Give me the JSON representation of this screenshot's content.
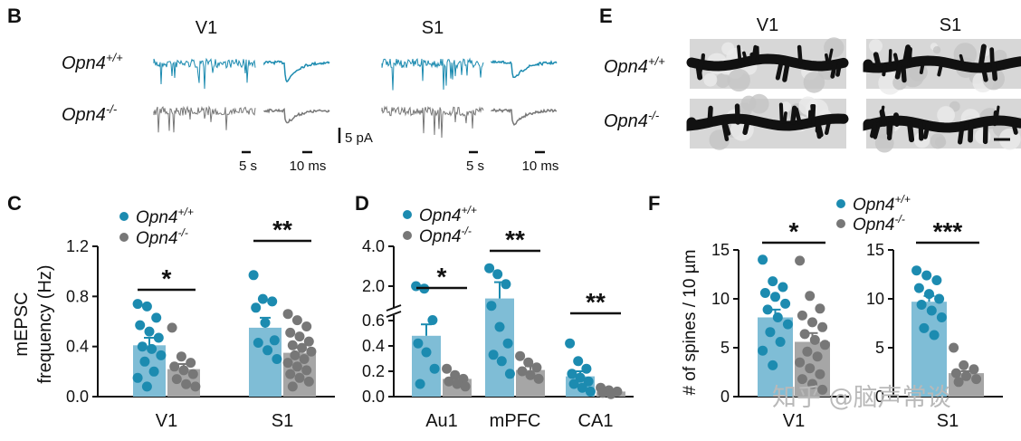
{
  "colors": {
    "wt": "#1c8bb0",
    "wt_bar": "#7fbdd6",
    "ko": "#777777",
    "ko_bar": "#a6a6a6",
    "ax": "#111111"
  },
  "genotypes": {
    "wt": "Opn4",
    "wt_sup": "+/+",
    "ko": "Opn4",
    "ko_sup": "-/-"
  },
  "panel_b": {
    "letter": "B",
    "regions": [
      "V1",
      "S1"
    ],
    "rows": [
      "Opn4+/+",
      "Opn4-/-"
    ],
    "scale_y": "5 pA",
    "scale_x_long": "5 s",
    "scale_x_short": "10 ms"
  },
  "panel_e": {
    "letter": "E",
    "regions": [
      "V1",
      "S1"
    ],
    "rows": [
      "Opn4+/+",
      "Opn4-/-"
    ]
  },
  "watermark": "知乎 @脑声常谈",
  "chart_data": [
    {
      "panel": "C",
      "type": "bar",
      "ylabel": "mEPSC frequency (Hz)",
      "ylabel_line1": "mEPSC",
      "ylabel_line2": "frequency (Hz)",
      "ylim": [
        0,
        1.2
      ],
      "yticks": [
        "0.0",
        "0.4",
        "0.8",
        "1.2"
      ],
      "categories": [
        "V1",
        "S1"
      ],
      "series": [
        {
          "name": "Opn4+/+",
          "values": [
            0.41,
            0.55
          ],
          "sem": [
            0.06,
            0.08
          ],
          "points": [
            [
              0.74,
              0.72,
              0.63,
              0.57,
              0.52,
              0.47,
              0.4,
              0.38,
              0.33,
              0.28,
              0.2,
              0.15,
              0.08
            ],
            [
              0.97,
              0.78,
              0.76,
              0.71,
              0.59,
              0.45,
              0.43,
              0.37,
              0.3
            ]
          ]
        },
        {
          "name": "Opn4-/-",
          "values": [
            0.22,
            0.35
          ],
          "sem": [
            0.04,
            0.04
          ],
          "points": [
            [
              0.55,
              0.32,
              0.27,
              0.24,
              0.21,
              0.18,
              0.14,
              0.1,
              0.08
            ],
            [
              0.66,
              0.61,
              0.56,
              0.51,
              0.48,
              0.44,
              0.41,
              0.39,
              0.36,
              0.33,
              0.3,
              0.27,
              0.24,
              0.21,
              0.18,
              0.15,
              0.12,
              0.08
            ]
          ]
        }
      ],
      "significance": [
        "*",
        "**"
      ]
    },
    {
      "panel": "D",
      "type": "bar",
      "ylim_lower": [
        0,
        0.6
      ],
      "ylim_upper": [
        2.0,
        4.0
      ],
      "yticks_lower": [
        "0.0",
        "0.2",
        "0.4",
        "0.6"
      ],
      "yticks_upper": [
        "2.0",
        "4.0"
      ],
      "categories": [
        "Au1",
        "mPFC",
        "CA1"
      ],
      "series": [
        {
          "name": "Opn4+/+",
          "values": [
            0.48,
            1.5,
            0.16
          ],
          "sem": [
            0.09,
            0.7,
            0.04
          ],
          "points": [
            [
              2.0,
              1.9,
              0.62,
              0.42,
              0.35,
              0.22,
              0.1
            ],
            [
              2.9,
              2.6,
              2.1,
              1.2,
              0.55,
              0.42,
              0.33,
              0.28,
              0.18
            ],
            [
              0.42,
              0.28,
              0.22,
              0.18,
              0.15,
              0.12,
              0.1,
              0.07,
              0.04
            ]
          ]
        },
        {
          "name": "Opn4-/-",
          "values": [
            0.14,
            0.21,
            0.04
          ],
          "sem": [
            0.02,
            0.03,
            0.01
          ],
          "points": [
            [
              0.22,
              0.17,
              0.14,
              0.12,
              0.1,
              0.08
            ],
            [
              0.32,
              0.27,
              0.23,
              0.2,
              0.17,
              0.14
            ],
            [
              0.07,
              0.05,
              0.04,
              0.03,
              0.02
            ]
          ]
        }
      ],
      "significance": [
        "*",
        "**",
        "**"
      ]
    },
    {
      "panel": "F",
      "type": "bar",
      "ylabel": "# of spines / 10 µm",
      "ylim": [
        0,
        15
      ],
      "yticks": [
        "0",
        "5",
        "10",
        "15"
      ],
      "categories": [
        "V1",
        "S1"
      ],
      "series": [
        {
          "name": "Opn4+/+",
          "values": [
            8.1,
            9.7
          ],
          "sem": [
            0.8,
            0.6
          ],
          "points": [
            [
              14.0,
              11.8,
              11.2,
              10.6,
              10.2,
              9.5,
              8.9,
              8.1,
              7.4,
              6.6,
              5.6,
              4.7,
              3.2
            ],
            [
              12.9,
              12.4,
              11.9,
              11.1,
              10.5,
              10.0,
              9.4,
              8.8,
              8.1,
              7.0,
              6.3
            ]
          ]
        },
        {
          "name": "Opn4-/-",
          "values": [
            5.6,
            2.4
          ],
          "sem": [
            0.9,
            0.2
          ],
          "points": [
            [
              13.9,
              10.3,
              9.0,
              8.3,
              7.6,
              7.1,
              6.4,
              5.8,
              5.3,
              4.6,
              4.1,
              3.5,
              2.9,
              2.3,
              1.8,
              1.3,
              0.7
            ],
            [
              5.0,
              3.2,
              2.8,
              2.4,
              2.1,
              1.8,
              1.5
            ]
          ]
        }
      ],
      "significance": [
        "*",
        "***"
      ]
    }
  ]
}
